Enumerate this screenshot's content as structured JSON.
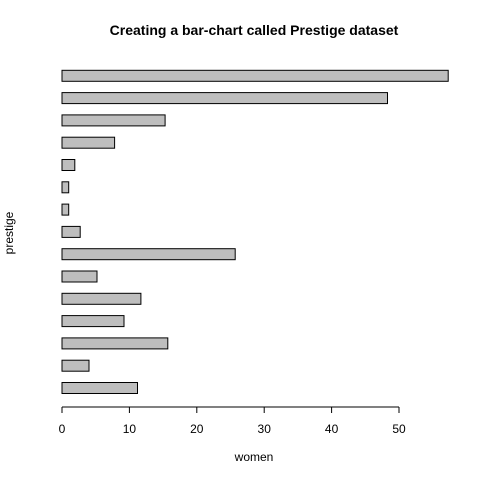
{
  "chart_data": {
    "type": "bar",
    "orientation": "horizontal",
    "title": "Creating a bar-chart called Prestige dataset",
    "xlabel": "women",
    "ylabel": "prestige",
    "xlim": [
      0,
      57
    ],
    "xticks": [
      "0",
      "10",
      "20",
      "30",
      "40",
      "50"
    ],
    "values": [
      11.2,
      4.0,
      15.7,
      9.2,
      11.7,
      5.2,
      25.7,
      2.7,
      1.0,
      1.0,
      1.9,
      7.8,
      15.3,
      48.3,
      57.3
    ],
    "bar_color": "#bebebe",
    "grid": false,
    "legend": "none"
  }
}
